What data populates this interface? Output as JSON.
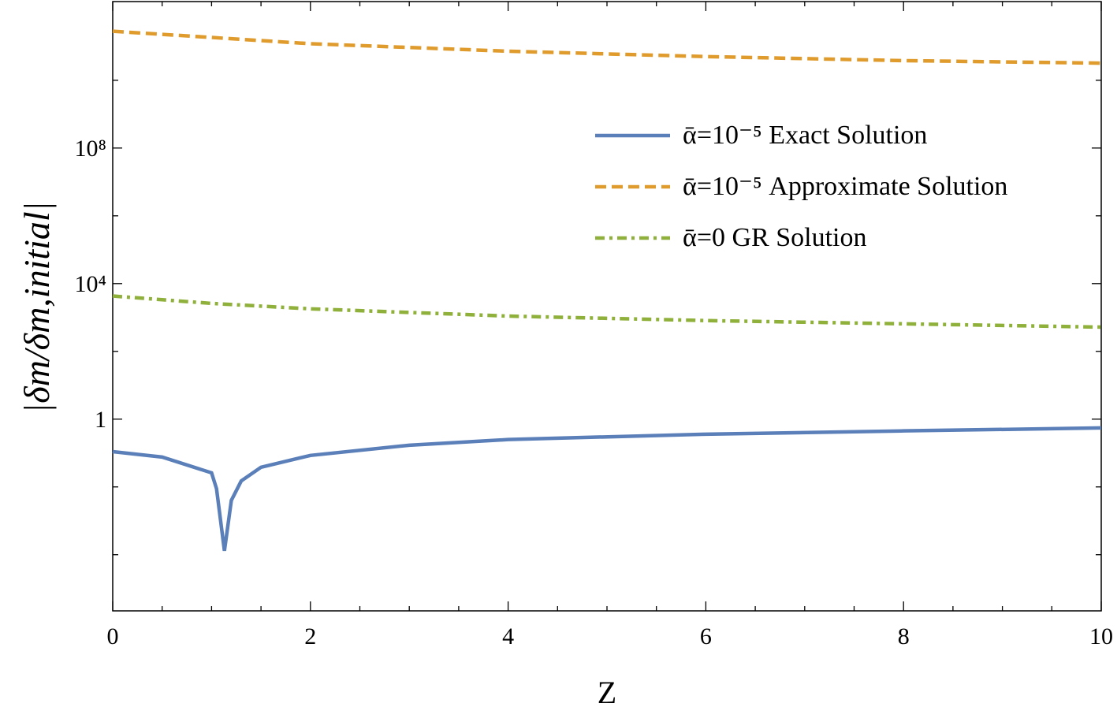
{
  "chart_data": {
    "type": "line",
    "x_label": "Z",
    "y_label": "|δm/δm,initial|",
    "xlim": [
      0,
      10
    ],
    "xticks": [
      0,
      2,
      4,
      6,
      8,
      10
    ],
    "xminorticks": [
      0.5,
      1,
      1.5,
      2.5,
      3,
      3.5,
      4.5,
      5,
      5.5,
      6.5,
      7,
      7.5,
      8.5,
      9,
      9.5
    ],
    "ylim": [
      2.2e-06,
      2100000000000.0
    ],
    "ylog": true,
    "yticks": [
      {
        "value": 1,
        "label": "1"
      },
      {
        "value": 10000,
        "label": "10⁴"
      },
      {
        "value": 100000000,
        "label": "10⁸"
      }
    ],
    "yminorticks": [
      0.0001,
      0.01,
      100,
      1000000,
      10000000000
    ],
    "legend": "upper right",
    "series": [
      {
        "name": "ᾱ=10⁻⁵ Exact Solution",
        "color": "#5b7fb8",
        "style": "solid",
        "x": [
          0,
          0.5,
          1,
          1.05,
          1.13,
          1.2,
          1.3,
          1.5,
          2,
          3,
          4,
          6,
          8,
          10
        ],
        "values": [
          0.11,
          0.076,
          0.026,
          0.0089,
          0.00013,
          0.004,
          0.015,
          0.038,
          0.085,
          0.17,
          0.25,
          0.36,
          0.45,
          0.55
        ]
      },
      {
        "name": "ᾱ=10⁻⁵ Approximate Solution",
        "color": "#e09b2d",
        "style": "dashed",
        "x": [
          0,
          2,
          4,
          6,
          8,
          10
        ],
        "values": [
          280000000000,
          120000000000,
          72000000000,
          50000000000,
          38000000000,
          32000000000
        ]
      },
      {
        "name": "ᾱ=0 GR Solution",
        "color": "#8fb03a",
        "style": "dashdot",
        "x": [
          0,
          1,
          2,
          4,
          6,
          8,
          10
        ],
        "values": [
          4300,
          2600,
          1800,
          1100,
          810,
          650,
          520
        ]
      }
    ]
  }
}
